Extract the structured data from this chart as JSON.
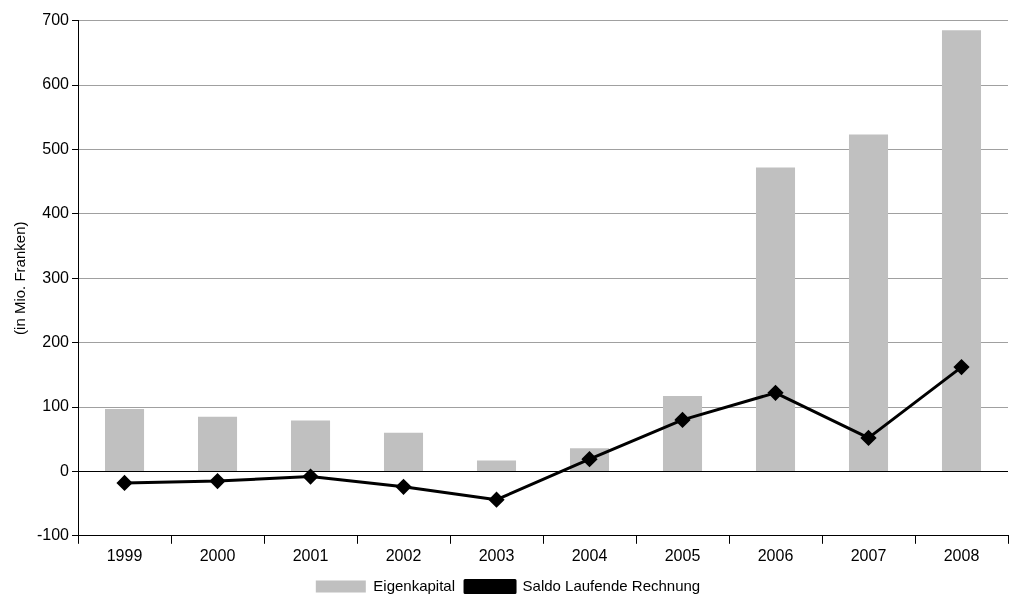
{
  "chart_data": {
    "type": "bar",
    "ylabel": "(in Mio. Franken)",
    "categories": [
      "1999",
      "2000",
      "2001",
      "2002",
      "2003",
      "2004",
      "2005",
      "2006",
      "2007",
      "2008"
    ],
    "series": [
      {
        "name": "Eigenkapital",
        "color": "#c0c0c0",
        "values": [
          97,
          85,
          79,
          60,
          17,
          36,
          117,
          472,
          523,
          685
        ]
      },
      {
        "name": "Saldo Laufende Rechnung",
        "type": "line",
        "color": "#000000",
        "marker": "diamond",
        "values": [
          -18,
          -15,
          -8,
          -24,
          -44,
          19,
          80,
          122,
          52,
          162
        ]
      }
    ],
    "ylim": [
      -100,
      700
    ],
    "yticks": [
      -100,
      0,
      100,
      200,
      300,
      400,
      500,
      600,
      700
    ],
    "grid": "y",
    "legend": "bottom"
  }
}
